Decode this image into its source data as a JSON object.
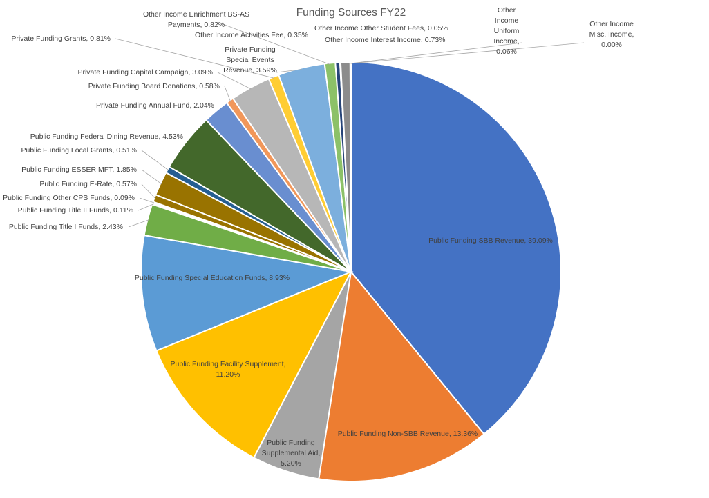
{
  "chart_data": {
    "type": "pie",
    "title": "Funding Sources FY22",
    "slices": [
      {
        "label": "Public Funding SBB Revenue",
        "value": 39.09,
        "value_label": "39.09%",
        "color": "#4472C4"
      },
      {
        "label": "Public Funding Non-SBB Revenue",
        "value": 13.36,
        "value_label": "13.36%",
        "color": "#ED7D31"
      },
      {
        "label": "Public Funding Supplemental Aid",
        "value": 5.2,
        "value_label": "5.20%",
        "color": "#A5A5A5"
      },
      {
        "label": "Public Funding Facility Supplement",
        "value": 11.2,
        "value_label": "11.20%",
        "color": "#FFC000"
      },
      {
        "label": "Public Funding Special Education Funds",
        "value": 8.93,
        "value_label": "8.93%",
        "color": "#5B9BD5"
      },
      {
        "label": "Public Funding Title I Funds",
        "value": 2.43,
        "value_label": "2.43%",
        "color": "#70AD47"
      },
      {
        "label": "Public Funding Title II Funds",
        "value": 0.11,
        "value_label": "0.11%",
        "color": "#264478"
      },
      {
        "label": "Public Funding Other CPS Funds",
        "value": 0.09,
        "value_label": "0.09%",
        "color": "#636363"
      },
      {
        "label": "Public Funding E-Rate",
        "value": 0.57,
        "value_label": "0.57%",
        "color": "#997300"
      },
      {
        "label": "Public Funding ESSER MFT",
        "value": 1.85,
        "value_label": "1.85%",
        "color": "#997300"
      },
      {
        "label": "Public Funding Local Grants",
        "value": 0.51,
        "value_label": "0.51%",
        "color": "#255E91"
      },
      {
        "label": "Public Funding Federal Dining Revenue",
        "value": 4.53,
        "value_label": "4.53%",
        "color": "#43682B"
      },
      {
        "label": "Private Funding Annual Fund",
        "value": 2.04,
        "value_label": "2.04%",
        "color": "#698ED0"
      },
      {
        "label": "Private Funding Board Donations",
        "value": 0.58,
        "value_label": "0.58%",
        "color": "#F1975A"
      },
      {
        "label": "Private Funding Capital Campaign",
        "value": 3.09,
        "value_label": "3.09%",
        "color": "#B7B7B7"
      },
      {
        "label": "Private Funding Grants",
        "value": 0.81,
        "value_label": "0.81%",
        "color": "#FFCD33"
      },
      {
        "label": "Private Funding Special Events Revenue",
        "value": 3.59,
        "value_label": "3.59%",
        "color": "#7CAFDD"
      },
      {
        "label": "Other Income Enrichment BS-AS Payments",
        "value": 0.82,
        "value_label": "0.82%",
        "color": "#8CC168"
      },
      {
        "label": "Other Income Activities Fee",
        "value": 0.35,
        "value_label": "0.35%",
        "color": "#264478"
      },
      {
        "label": "Other Income Other Student Fees",
        "value": 0.05,
        "value_label": "0.05%",
        "color": "#9E480E"
      },
      {
        "label": "Other Income Interest Income",
        "value": 0.73,
        "value_label": "0.73%",
        "color": "#8C8C8C"
      },
      {
        "label": "Other Income Uniform Income",
        "value": 0.06,
        "value_label": "0.06%",
        "color": "#CC9A00"
      },
      {
        "label": "Other Income Misc. Income",
        "value": 0.0,
        "value_label": "0.00%",
        "color": "#4472C4"
      }
    ]
  }
}
